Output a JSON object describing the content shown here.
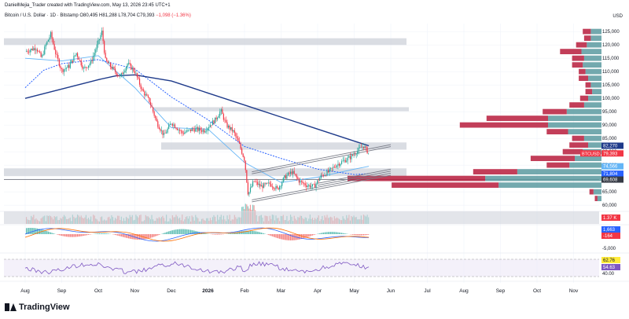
{
  "header": {
    "credit": "DanielMejia_Trader created with TradingView.com, May 13, 2026 23:45 UTC+1",
    "symbol": "Bitcoin / U.S. Dollar · 1D · Bitstamp",
    "ohlc": "O80,495 H81,288 L78,704 C79,393",
    "change": "−1,098 (−1.36%)",
    "currency": "USD"
  },
  "brand": {
    "name": "TradingView"
  },
  "colors": {
    "up": "#26a69a",
    "down": "#f23645",
    "sma_long": "#1e3a8a",
    "sma_dotted": "#2962ff",
    "sma_light": "#64b5f6",
    "zone": "#d1d4dc",
    "vp_up": "#5b9aa0",
    "vp_down": "#b71c3c",
    "rsi": "#7e57c2"
  },
  "chart_data": {
    "type": "candlestick",
    "title": "",
    "ylabel": "USD",
    "ylim": [
      58000,
      128000
    ],
    "y_ticks": [
      60000,
      65000,
      70000,
      75000,
      80000,
      85000,
      90000,
      95000,
      100000,
      105000,
      110000,
      115000,
      120000,
      125000
    ],
    "y_tick_labels": [
      "60,000",
      "65,000",
      "70,000",
      "75,000",
      "80,000",
      "85,000",
      "90,000",
      "95,000",
      "100,000",
      "105,000",
      "110,000",
      "115,000",
      "120,000",
      "125,000"
    ],
    "x_labels": [
      "Aug",
      "Sep",
      "Oct",
      "Nov",
      "Dec",
      "2026",
      "Feb",
      "Mar",
      "Apr",
      "May",
      "Jun",
      "Jul",
      "Aug",
      "Sep",
      "Oct",
      "Nov"
    ],
    "x_label_index": [
      0,
      1,
      2,
      3,
      4,
      5,
      6,
      7,
      8,
      9,
      10,
      11,
      12,
      13,
      14,
      15
    ],
    "price_path": [
      {
        "m": 0.0,
        "p": 117500
      },
      {
        "m": 0.3,
        "p": 119000
      },
      {
        "m": 0.45,
        "p": 115000
      },
      {
        "m": 0.55,
        "p": 119500
      },
      {
        "m": 0.7,
        "p": 124000
      },
      {
        "m": 0.85,
        "p": 116000
      },
      {
        "m": 1.0,
        "p": 110500
      },
      {
        "m": 1.2,
        "p": 112000
      },
      {
        "m": 1.4,
        "p": 117000
      },
      {
        "m": 1.6,
        "p": 111000
      },
      {
        "m": 1.8,
        "p": 113500
      },
      {
        "m": 2.0,
        "p": 121000
      },
      {
        "m": 2.1,
        "p": 125000
      },
      {
        "m": 2.2,
        "p": 114000
      },
      {
        "m": 2.4,
        "p": 111000
      },
      {
        "m": 2.6,
        "p": 108000
      },
      {
        "m": 2.8,
        "p": 113000
      },
      {
        "m": 3.0,
        "p": 110000
      },
      {
        "m": 3.2,
        "p": 103000
      },
      {
        "m": 3.4,
        "p": 99000
      },
      {
        "m": 3.6,
        "p": 91000
      },
      {
        "m": 3.8,
        "p": 86000
      },
      {
        "m": 4.0,
        "p": 91000
      },
      {
        "m": 4.3,
        "p": 87000
      },
      {
        "m": 4.6,
        "p": 88500
      },
      {
        "m": 4.9,
        "p": 88000
      },
      {
        "m": 5.2,
        "p": 92000
      },
      {
        "m": 5.35,
        "p": 95500
      },
      {
        "m": 5.5,
        "p": 90000
      },
      {
        "m": 5.7,
        "p": 87500
      },
      {
        "m": 5.85,
        "p": 83000
      },
      {
        "m": 6.0,
        "p": 77000
      },
      {
        "m": 6.1,
        "p": 64000
      },
      {
        "m": 6.25,
        "p": 69000
      },
      {
        "m": 6.45,
        "p": 67000
      },
      {
        "m": 6.7,
        "p": 68000
      },
      {
        "m": 6.9,
        "p": 66000
      },
      {
        "m": 7.1,
        "p": 70500
      },
      {
        "m": 7.3,
        "p": 72500
      },
      {
        "m": 7.5,
        "p": 69000
      },
      {
        "m": 7.7,
        "p": 67500
      },
      {
        "m": 7.9,
        "p": 67000
      },
      {
        "m": 8.1,
        "p": 71000
      },
      {
        "m": 8.3,
        "p": 72500
      },
      {
        "m": 8.5,
        "p": 75000
      },
      {
        "m": 8.7,
        "p": 76500
      },
      {
        "m": 8.9,
        "p": 78000
      },
      {
        "m": 9.1,
        "p": 80500
      },
      {
        "m": 9.25,
        "p": 82300
      },
      {
        "m": 9.4,
        "p": 79393
      }
    ],
    "sma_long": [
      {
        "m": 0.0,
        "p": 100000
      },
      {
        "m": 1.0,
        "p": 103500
      },
      {
        "m": 2.0,
        "p": 107000
      },
      {
        "m": 2.5,
        "p": 108500
      },
      {
        "m": 3.0,
        "p": 108800
      },
      {
        "m": 4.0,
        "p": 106500
      },
      {
        "m": 5.0,
        "p": 102000
      },
      {
        "m": 6.0,
        "p": 97500
      },
      {
        "m": 7.0,
        "p": 93000
      },
      {
        "m": 8.0,
        "p": 88500
      },
      {
        "m": 9.0,
        "p": 84000
      },
      {
        "m": 9.4,
        "p": 82270
      }
    ],
    "sma_dotted": [
      {
        "m": 0.0,
        "p": 104000
      },
      {
        "m": 0.5,
        "p": 110500
      },
      {
        "m": 1.0,
        "p": 113000
      },
      {
        "m": 2.0,
        "p": 114500
      },
      {
        "m": 3.0,
        "p": 111000
      },
      {
        "m": 4.0,
        "p": 100500
      },
      {
        "m": 5.0,
        "p": 92000
      },
      {
        "m": 6.0,
        "p": 82000
      },
      {
        "m": 7.0,
        "p": 77500
      },
      {
        "m": 8.0,
        "p": 73500
      },
      {
        "m": 9.0,
        "p": 71500
      },
      {
        "m": 9.4,
        "p": 71804
      }
    ],
    "sma_light": [
      {
        "m": 0.0,
        "p": 115000
      },
      {
        "m": 1.0,
        "p": 114000
      },
      {
        "m": 2.0,
        "p": 116000
      },
      {
        "m": 3.0,
        "p": 104000
      },
      {
        "m": 4.0,
        "p": 89000
      },
      {
        "m": 5.0,
        "p": 88500
      },
      {
        "m": 6.0,
        "p": 76000
      },
      {
        "m": 7.0,
        "p": 68500
      },
      {
        "m": 8.0,
        "p": 70500
      },
      {
        "m": 9.0,
        "p": 73500
      },
      {
        "m": 9.4,
        "p": 74566
      }
    ],
    "zones": [
      {
        "from": 120000,
        "to": 122500
      },
      {
        "from": 95200,
        "to": 96700
      },
      {
        "from": 80800,
        "to": 83500
      },
      {
        "from": 70900,
        "to": 73800
      }
    ],
    "hline": 69608,
    "channel": [
      {
        "from": {
          "m": 6.2,
          "p": 72500
        },
        "to": {
          "m": 10.0,
          "p": 82700
        }
      },
      {
        "from": {
          "m": 6.2,
          "p": 62000
        },
        "to": {
          "m": 10.0,
          "p": 72000
        }
      },
      {
        "from": {
          "m": 8.0,
          "p": 68200
        },
        "to": {
          "m": 10.0,
          "p": 73500
        }
      }
    ],
    "volume_profile": [
      {
        "price": 125000,
        "up": 8,
        "down": 6
      },
      {
        "price": 122500,
        "up": 8,
        "down": 5
      },
      {
        "price": 120000,
        "up": 11,
        "down": 8
      },
      {
        "price": 117500,
        "up": 15,
        "down": 16
      },
      {
        "price": 115000,
        "up": 13,
        "down": 9
      },
      {
        "price": 112500,
        "up": 14,
        "down": 8
      },
      {
        "price": 110000,
        "up": 12,
        "down": 5
      },
      {
        "price": 107500,
        "up": 10,
        "down": 7
      },
      {
        "price": 105000,
        "up": 8,
        "down": 4
      },
      {
        "price": 102500,
        "up": 7,
        "down": 5
      },
      {
        "price": 100000,
        "up": 10,
        "down": 6
      },
      {
        "price": 97500,
        "up": 13,
        "down": 11
      },
      {
        "price": 95000,
        "up": 26,
        "down": 18
      },
      {
        "price": 92500,
        "up": 40,
        "down": 46
      },
      {
        "price": 90000,
        "up": 40,
        "down": 66
      },
      {
        "price": 87500,
        "up": 25,
        "down": 16
      },
      {
        "price": 85000,
        "up": 13,
        "down": 9
      },
      {
        "price": 82500,
        "up": 10,
        "down": 14
      },
      {
        "price": 80000,
        "up": 14,
        "down": 15
      },
      {
        "price": 77500,
        "up": 20,
        "down": 33
      },
      {
        "price": 75000,
        "up": 24,
        "down": 17
      },
      {
        "price": 72500,
        "up": 63,
        "down": 33
      },
      {
        "price": 70000,
        "up": 87,
        "down": 103
      },
      {
        "price": 67500,
        "up": 77,
        "down": 80
      },
      {
        "price": 65000,
        "up": 6,
        "down": 3
      },
      {
        "price": 62500,
        "up": 3,
        "down": 2
      }
    ],
    "price_labels": [
      {
        "value": 82270,
        "text": "82,270",
        "kind": "sma_long"
      },
      {
        "value": 79393,
        "text": "79,393",
        "kind": "last",
        "symbol": "BTCUSD"
      },
      {
        "value": 74566,
        "text": "74,566",
        "kind": "sma_light"
      },
      {
        "value": 71804,
        "text": "71,804",
        "kind": "sma_dotted"
      },
      {
        "value": 69608,
        "text": "69,608",
        "kind": "hline"
      }
    ],
    "volume": {
      "last_label": "1.37 K",
      "extra_label": "0"
    },
    "macd": {
      "labels": [
        "1,663",
        "-164"
      ],
      "tick": "-5,000"
    },
    "rsi": {
      "labels": [
        "62.76",
        "54.63"
      ],
      "tick": "40.00",
      "upper": 70,
      "lower": 30
    }
  }
}
